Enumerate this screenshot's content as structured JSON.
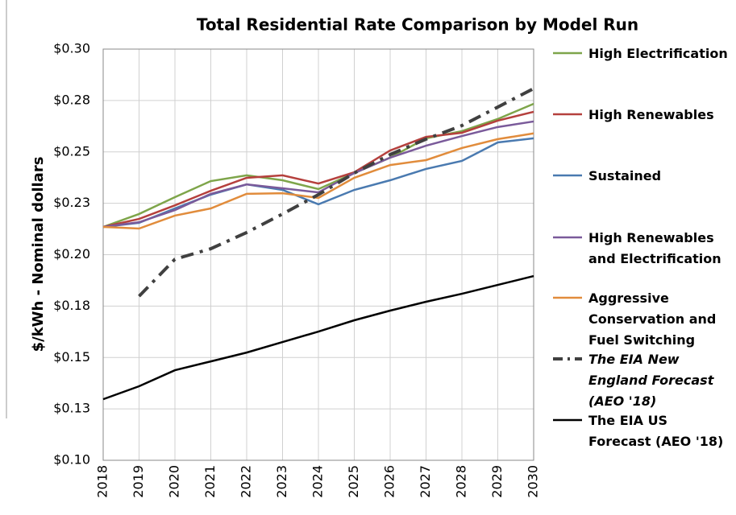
{
  "chart_data": {
    "type": "line",
    "title": "Total Residential Rate Comparison by Model Run",
    "y_label": "$/kWh - Nominal dollars",
    "categories": [
      "2018",
      "2019",
      "2020",
      "2021",
      "2022",
      "2023",
      "2024",
      "2025",
      "2026",
      "2027",
      "2028",
      "2029",
      "2030"
    ],
    "ylim": [
      0.1,
      0.3
    ],
    "yticks": [
      {
        "value": 0.1,
        "label": "$0.10"
      },
      {
        "value": 0.125,
        "label": "$0.13"
      },
      {
        "value": 0.15,
        "label": "$0.15"
      },
      {
        "value": 0.175,
        "label": "$0.18"
      },
      {
        "value": 0.2,
        "label": "$0.20"
      },
      {
        "value": 0.225,
        "label": "$0.23"
      },
      {
        "value": 0.25,
        "label": "$0.25"
      },
      {
        "value": 0.275,
        "label": "$0.28"
      },
      {
        "value": 0.3,
        "label": "$0.30"
      }
    ],
    "grid": true,
    "legend": "right",
    "series": [
      {
        "name": "High Electrification",
        "color": "#7ea54a",
        "values": [
          0.2135,
          0.2198,
          0.228,
          0.2358,
          0.2386,
          0.2362,
          0.2319,
          0.2397,
          0.2472,
          0.2566,
          0.2601,
          0.266,
          0.2734
        ]
      },
      {
        "name": "High Renewables",
        "color": "#b5403d",
        "values": [
          0.2135,
          0.2174,
          0.224,
          0.2311,
          0.2374,
          0.2386,
          0.2346,
          0.2401,
          0.2507,
          0.2573,
          0.2593,
          0.2652,
          0.2695
        ]
      },
      {
        "name": "Sustained",
        "color": "#4a7ab0",
        "values": [
          0.2135,
          0.2155,
          0.2225,
          0.2292,
          0.2342,
          0.2315,
          0.2245,
          0.2315,
          0.2362,
          0.2417,
          0.2456,
          0.2546,
          0.2566
        ]
      },
      {
        "name": "High Renewables and Electrification",
        "color": "#7a5a9a",
        "values": [
          0.2135,
          0.2158,
          0.2217,
          0.2296,
          0.2342,
          0.2323,
          0.2303,
          0.2397,
          0.2472,
          0.253,
          0.2577,
          0.2621,
          0.2648
        ]
      },
      {
        "name": "Aggressive Conservation and Fuel Switching",
        "color": "#e18c3c",
        "values": [
          0.2135,
          0.2127,
          0.219,
          0.2225,
          0.2296,
          0.2299,
          0.2276,
          0.2374,
          0.2436,
          0.246,
          0.2519,
          0.2562,
          0.259
        ]
      },
      {
        "name": "The EIA New England Forecast (AEO '18)",
        "color": "#404040",
        "dash": "dashdot",
        "italic": true,
        "values": [
          null,
          0.1798,
          0.1978,
          0.2029,
          0.2108,
          0.2198,
          0.2292,
          0.2397,
          0.2487,
          0.2562,
          0.2628,
          0.2718,
          0.2808
        ]
      },
      {
        "name": "The EIA US Forecast (AEO '18)",
        "color": "#000000",
        "values": [
          0.1297,
          0.136,
          0.1438,
          0.1481,
          0.1524,
          0.1575,
          0.1626,
          0.1681,
          0.1728,
          0.1771,
          0.181,
          0.1853,
          0.1896
        ]
      }
    ]
  }
}
